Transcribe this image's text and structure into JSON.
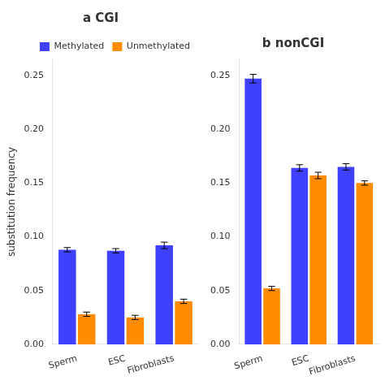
{
  "chart_data": [
    {
      "type": "bar",
      "title": "a CGI",
      "ylabel": "substitution frequency",
      "categories": [
        "Sperm",
        "ESC",
        "Fibroblasts"
      ],
      "series": [
        {
          "name": "Methylated",
          "color": "#4040FF",
          "values": [
            0.088,
            0.087,
            0.092
          ],
          "errors": [
            0.002,
            0.002,
            0.003
          ]
        },
        {
          "name": "Unmethylated",
          "color": "#FF8C00",
          "values": [
            0.028,
            0.025,
            0.04
          ],
          "errors": [
            0.002,
            0.002,
            0.002
          ]
        }
      ],
      "ylim": [
        0,
        0.265
      ],
      "yticks": [
        {
          "value": 0,
          "label": "0.00"
        },
        0.05,
        {
          "value": 0.1,
          "label": "0.10"
        },
        0.15,
        {
          "value": 0.2,
          "label": "0.20"
        },
        0.25
      ],
      "grid": false,
      "legend": "upper right"
    },
    {
      "type": "bar",
      "title": "b nonCGI",
      "categories": [
        "Sperm",
        "ESC",
        "Fibroblasts"
      ],
      "series": [
        {
          "name": "Methylated",
          "color": "#4040FF",
          "values": [
            0.247,
            0.164,
            0.165
          ],
          "errors": [
            0.004,
            0.003,
            0.003
          ]
        },
        {
          "name": "Unmethylated",
          "color": "#FF8C00",
          "values": [
            0.052,
            0.157,
            0.15
          ],
          "errors": [
            0.002,
            0.003,
            0.002
          ]
        }
      ],
      "ylim": [
        0,
        0.265
      ],
      "yticks": [
        {
          "value": 0,
          "label": "0.00"
        },
        0.05,
        {
          "value": 0.1,
          "label": "0.10"
        },
        0.15,
        {
          "value": 0.2,
          "label": "0.20"
        },
        0.25
      ],
      "grid": false
    }
  ]
}
